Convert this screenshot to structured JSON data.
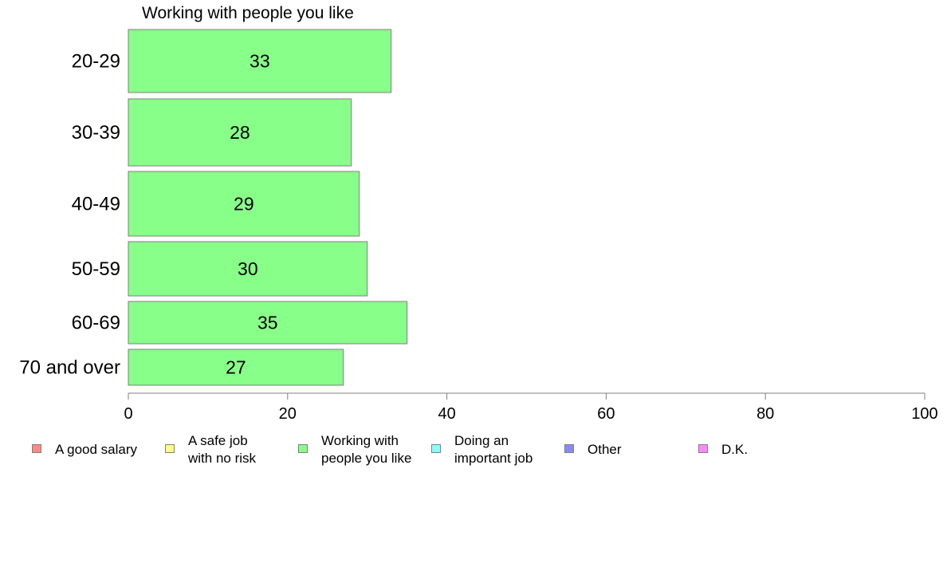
{
  "chart_data": {
    "type": "bar",
    "orientation": "horizontal",
    "title": "Working with people you like",
    "categories": [
      "20-29",
      "30-39",
      "40-49",
      "50-59",
      "60-69",
      "70 and over"
    ],
    "values": [
      33,
      28,
      29,
      30,
      35,
      27
    ],
    "data_labels": [
      "33",
      "28",
      "29",
      "30",
      "35",
      "27"
    ],
    "xlim": [
      0,
      100
    ],
    "xticks": [
      0,
      20,
      40,
      60,
      80,
      100
    ],
    "bar_color": "#88ff88",
    "grid": false,
    "legend_position": "bottom",
    "legend": [
      {
        "label": "A good salary",
        "color": "#ff8888"
      },
      {
        "label": "A safe job\nwith no risk",
        "color": "#ffff88"
      },
      {
        "label": "Working with\npeople you like",
        "color": "#88ff88"
      },
      {
        "label": "Doing an\nimportant job",
        "color": "#88ffff"
      },
      {
        "label": "Other",
        "color": "#8888ff"
      },
      {
        "label": "D.K.",
        "color": "#ff88ff"
      }
    ]
  }
}
